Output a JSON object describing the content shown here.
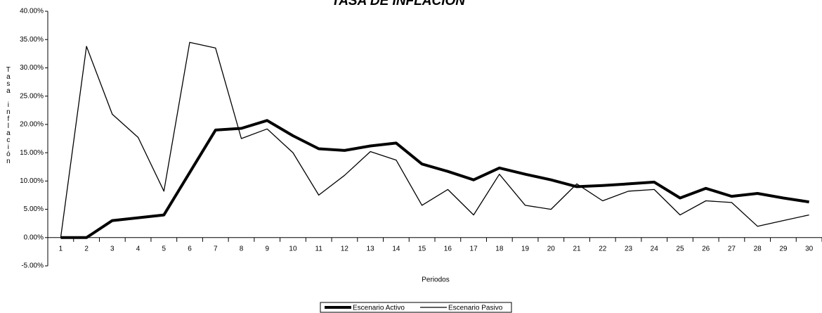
{
  "chart_data": {
    "type": "line",
    "title": "TASA DE INFLACIÓN",
    "x_label": "Periodos",
    "y_label": "Tasa inflación",
    "categories": [
      1,
      2,
      3,
      4,
      5,
      6,
      7,
      8,
      9,
      10,
      11,
      12,
      13,
      14,
      15,
      16,
      17,
      18,
      19,
      20,
      21,
      22,
      23,
      24,
      25,
      26,
      27,
      28,
      29,
      30
    ],
    "series": [
      {
        "name": "Escenario Activo",
        "color": "#000000",
        "values": [
          0,
          0,
          3.0,
          3.5,
          4.0,
          11.5,
          19.0,
          19.3,
          20.7,
          18.0,
          15.7,
          15.4,
          16.2,
          16.7,
          13.0,
          11.7,
          10.2,
          12.3,
          11.2,
          10.2,
          9.0,
          9.2,
          9.5,
          9.8,
          7.0,
          8.7,
          7.3,
          7.8,
          7.0,
          6.3
        ]
      },
      {
        "name": "Escenario Pasivo",
        "color": "#000000",
        "values": [
          0,
          33.8,
          21.8,
          17.7,
          8.2,
          34.5,
          33.5,
          17.5,
          19.2,
          15.0,
          7.5,
          11.0,
          15.2,
          13.7,
          5.7,
          8.5,
          4.0,
          11.2,
          5.7,
          5.0,
          9.5,
          6.5,
          8.2,
          8.5,
          4.0,
          6.5,
          6.2,
          2.0,
          3.0,
          4.0
        ]
      }
    ],
    "ylim": [
      -5,
      40
    ],
    "yticks": [
      {
        "value": -5,
        "label": "-5.00%"
      },
      {
        "value": 0,
        "label": "0.00%"
      },
      {
        "value": 5,
        "label": "5.00%"
      },
      {
        "value": 10,
        "label": "10.00%"
      },
      {
        "value": 15,
        "label": "15.00%"
      },
      {
        "value": 20,
        "label": "20.00%"
      },
      {
        "value": 25,
        "label": "25.00%"
      },
      {
        "value": 30,
        "label": "30.00%"
      },
      {
        "value": 35,
        "label": "35.00%"
      },
      {
        "value": 40,
        "label": "40.00%"
      }
    ],
    "grid": false,
    "legend": "bottom"
  }
}
